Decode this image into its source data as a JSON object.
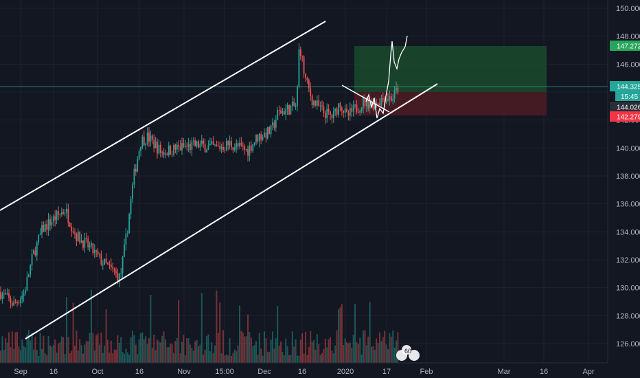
{
  "chart_data": {
    "type": "candlestick",
    "price_axis": {
      "ticks": [
        "150.000",
        "148.000",
        "146.000",
        "144.000",
        "142.000",
        "140.000",
        "138.000",
        "136.000",
        "134.000",
        "132.000",
        "130.000",
        "128.000",
        "126.000"
      ],
      "ylim": [
        125.3,
        150.3
      ]
    },
    "time_axis": {
      "ticks": [
        "Sep",
        "16",
        "Oct",
        "16",
        "Nov",
        "15:00",
        "Dec",
        "16",
        "2020",
        "17",
        "Feb",
        "Mar",
        "16",
        "Apr"
      ]
    },
    "price_labels": {
      "take_profit": "147.272",
      "last": "144.325",
      "countdown": "15:45",
      "current": "144.026",
      "stop_loss": "142.279"
    },
    "position": {
      "entry": 143.9,
      "take_profit": 147.272,
      "stop_loss": 142.279
    },
    "channel": {
      "upper": [
        [
          "start",
          135.6
        ],
        [
          "Dec 16",
          149.3
        ]
      ],
      "lower": [
        [
          "Sep 1",
          126.3
        ],
        [
          "Jan 24",
          144.4
        ]
      ]
    },
    "colors": {
      "background": "#131722",
      "up": "#26a69a",
      "down": "#ef5350",
      "take_profit_zone": "#1b4d2e",
      "stop_loss_zone": "#4a1a22",
      "take_profit_badge": "#26a65b",
      "stop_loss_badge": "#f23645",
      "last_badge": "#26a69a",
      "drawing": "#ffffff"
    },
    "watermark": "60"
  }
}
